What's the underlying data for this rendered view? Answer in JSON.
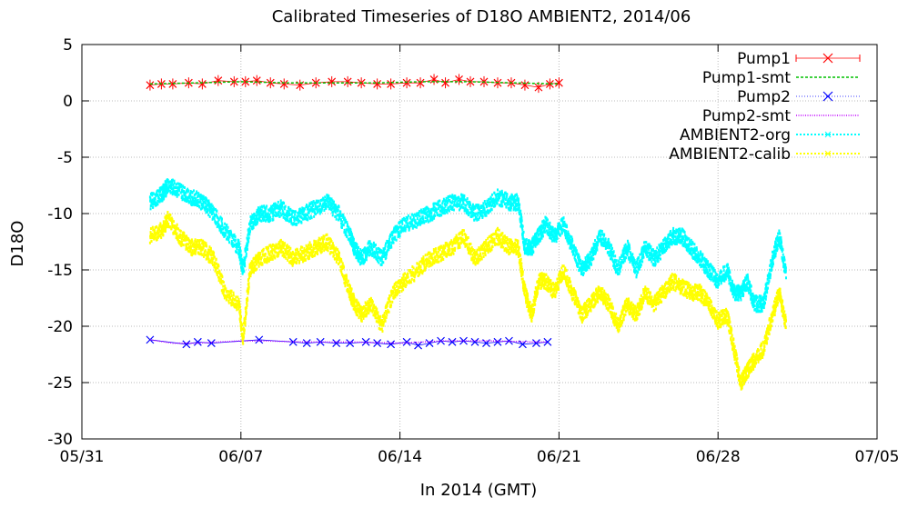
{
  "chart_data": {
    "type": "line",
    "title": "Calibrated Timeseries of D18O AMBIENT2, 2014/06",
    "xlabel": "In 2014 (GMT)",
    "ylabel": "D18O",
    "xlim": [
      "05/31",
      "07/05"
    ],
    "ylim": [
      -30,
      5
    ],
    "x_ticks": [
      "05/31",
      "06/07",
      "06/14",
      "06/21",
      "06/28",
      "07/05"
    ],
    "y_ticks": [
      5,
      0,
      -5,
      -10,
      -15,
      -20,
      -25,
      -30
    ],
    "grid": true,
    "legend_position": "top-right",
    "x_unit_note": "x values are days of June 2014 (e.g. 7 = 06/07); 0 = 05/31",
    "series": [
      {
        "name": "Pump1",
        "color": "#ff0000",
        "style": "points-errorbars",
        "x": [
          3,
          3.5,
          4,
          4.7,
          5.3,
          6,
          6.7,
          7.2,
          7.7,
          8.3,
          8.9,
          9.6,
          10.3,
          11,
          11.7,
          12.3,
          13,
          13.6,
          14.3,
          14.9,
          15.5,
          16,
          16.6,
          17.1,
          17.7,
          18.3,
          18.9,
          19.5,
          20.1,
          20.6,
          21
        ],
        "y": [
          1.4,
          1.5,
          1.5,
          1.6,
          1.5,
          1.8,
          1.7,
          1.7,
          1.8,
          1.6,
          1.5,
          1.4,
          1.6,
          1.7,
          1.7,
          1.6,
          1.5,
          1.5,
          1.6,
          1.6,
          1.9,
          1.6,
          1.9,
          1.7,
          1.7,
          1.6,
          1.6,
          1.4,
          1.2,
          1.5,
          1.6
        ]
      },
      {
        "name": "Pump1-smt",
        "color": "#00c000",
        "style": "line",
        "x": [
          3,
          5,
          7,
          9,
          11,
          13,
          15,
          17,
          19,
          21
        ],
        "y": [
          1.5,
          1.6,
          1.7,
          1.6,
          1.6,
          1.6,
          1.7,
          1.7,
          1.6,
          1.5
        ]
      },
      {
        "name": "Pump2",
        "color": "#0000ff",
        "style": "points",
        "x": [
          3,
          4.6,
          5.1,
          5.7,
          7.8,
          9.3,
          9.9,
          10.5,
          11.2,
          11.8,
          12.5,
          13,
          13.6,
          14.3,
          14.8,
          15.3,
          15.8,
          16.3,
          16.8,
          17.3,
          17.8,
          18.3,
          18.8,
          19.4,
          20,
          20.5
        ],
        "y": [
          -21.2,
          -21.6,
          -21.4,
          -21.5,
          -21.2,
          -21.4,
          -21.5,
          -21.4,
          -21.5,
          -21.5,
          -21.4,
          -21.5,
          -21.6,
          -21.4,
          -21.7,
          -21.5,
          -21.3,
          -21.4,
          -21.3,
          -21.4,
          -21.5,
          -21.4,
          -21.3,
          -21.6,
          -21.5,
          -21.4
        ]
      },
      {
        "name": "Pump2-smt",
        "color": "#c000ff",
        "style": "line",
        "x": [
          3,
          4,
          5,
          6,
          7,
          8,
          10,
          12,
          14,
          16,
          18,
          20,
          20.5
        ],
        "y": [
          -21.2,
          -21.5,
          -21.5,
          -21.4,
          -21.3,
          -21.3,
          -21.4,
          -21.4,
          -21.5,
          -21.3,
          -21.3,
          -21.4,
          -21.4
        ]
      },
      {
        "name": "AMBIENT2-org",
        "color": "#00ffff",
        "style": "dots",
        "x": [
          3,
          3.5,
          3.8,
          4.3,
          4.8,
          5.3,
          5.8,
          6.3,
          6.9,
          7.1,
          7.4,
          7.8,
          8.3,
          8.8,
          9.3,
          9.8,
          10.3,
          10.8,
          11.3,
          11.8,
          12.0,
          12.3,
          12.7,
          13.2,
          13.7,
          14.2,
          14.8,
          15.3,
          15.8,
          16.3,
          16.8,
          17.3,
          17.8,
          18.3,
          18.8,
          19.2,
          19.5,
          19.8,
          20.1,
          20.4,
          20.8,
          21.2,
          21.6,
          22.0,
          22.4,
          22.8,
          23.2,
          23.6,
          24.0,
          24.4,
          24.8,
          25.2,
          25.6,
          26.0,
          26.4,
          26.8,
          27.2,
          27.6,
          28.0,
          28.4,
          28.7,
          29.0,
          29.3,
          29.6,
          30.0,
          30.4,
          30.7,
          31.0
        ],
        "y": [
          -9,
          -8.3,
          -7.5,
          -8,
          -8.5,
          -9,
          -10,
          -11.5,
          -13,
          -15,
          -11,
          -10,
          -10,
          -9.5,
          -10.5,
          -10,
          -9.5,
          -9,
          -10,
          -12,
          -13,
          -14,
          -13,
          -14,
          -12,
          -11,
          -10.5,
          -10,
          -9.5,
          -9,
          -9,
          -10,
          -9.5,
          -8.5,
          -9,
          -9,
          -13,
          -13,
          -12,
          -11,
          -12,
          -11,
          -13,
          -15,
          -14,
          -12,
          -13,
          -15,
          -13,
          -15,
          -13,
          -14,
          -13,
          -12,
          -12,
          -13,
          -14,
          -15,
          -16,
          -15,
          -17,
          -17,
          -16,
          -18,
          -18,
          -14,
          -12,
          -15.5
        ]
      },
      {
        "name": "AMBIENT2-calib",
        "color": "#ffff00",
        "style": "dots",
        "x": [
          3,
          3.5,
          3.8,
          4.3,
          4.8,
          5.3,
          5.8,
          6.3,
          6.9,
          7.1,
          7.4,
          7.8,
          8.3,
          8.8,
          9.3,
          9.8,
          10.3,
          10.8,
          11.3,
          11.8,
          12.0,
          12.3,
          12.7,
          13.2,
          13.7,
          14.2,
          14.8,
          15.3,
          15.8,
          16.3,
          16.8,
          17.3,
          17.8,
          18.3,
          18.8,
          19.2,
          19.5,
          19.8,
          20.1,
          20.4,
          20.8,
          21.2,
          21.6,
          22.0,
          22.4,
          22.8,
          23.2,
          23.6,
          24.0,
          24.4,
          24.8,
          25.2,
          25.6,
          26.0,
          26.4,
          26.8,
          27.2,
          27.6,
          28.0,
          28.4,
          28.7,
          29.0,
          29.3,
          29.6,
          30.0,
          30.4,
          30.7,
          31.0
        ],
        "y": [
          -12,
          -11.5,
          -10.5,
          -12,
          -13,
          -13,
          -14,
          -17,
          -18,
          -21,
          -15,
          -14,
          -13.5,
          -13,
          -14,
          -13.5,
          -13,
          -12.5,
          -14,
          -17,
          -18,
          -19,
          -18,
          -20,
          -17,
          -16,
          -15,
          -14,
          -13.5,
          -13,
          -12,
          -14,
          -13,
          -12,
          -13,
          -13,
          -17,
          -19,
          -16,
          -16,
          -17,
          -15,
          -17,
          -19,
          -18,
          -17,
          -18,
          -20,
          -18,
          -19,
          -17,
          -18,
          -17,
          -16,
          -16.5,
          -17,
          -17,
          -18,
          -19.5,
          -19,
          -22,
          -25,
          -24,
          -23,
          -22,
          -19,
          -17,
          -20
        ]
      }
    ]
  }
}
